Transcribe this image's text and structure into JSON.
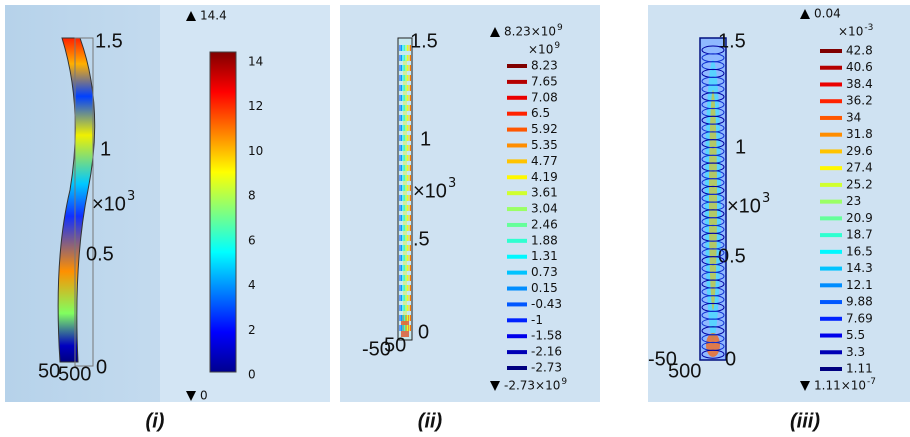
{
  "panels": [
    {
      "caption": "(i)",
      "top_label": "14.4",
      "bottom_label": "0",
      "scale_labels": [
        "14",
        "12",
        "10",
        "8",
        "6",
        "4",
        "2",
        "0"
      ],
      "axis_labels": {
        "top": "1.5",
        "mid": "1",
        "multiplier": "×10",
        "exponent": "3",
        "low": "0.5",
        "base": [
          "50",
          "500",
          "0"
        ]
      }
    },
    {
      "caption": "(ii)",
      "top_label": "8.23×10",
      "top_exponent": "9",
      "multiplier": "×10",
      "multiplier_exponent": "9",
      "bottom_label": "-2.73×10",
      "bottom_exponent": "9",
      "scale_labels": [
        "8.23",
        "7.65",
        "7.08",
        "6.5",
        "5.92",
        "5.35",
        "4.77",
        "4.19",
        "3.61",
        "3.04",
        "2.46",
        "1.88",
        "1.31",
        "0.73",
        "0.15",
        "-0.43",
        "-1",
        "-1.58",
        "-2.16",
        "-2.73"
      ],
      "axis_labels": {
        "top": "1.5",
        "mid": "1",
        "multiplier": "×10",
        "exponent": "3",
        "low": ".5",
        "base": [
          "-50",
          "50",
          "0"
        ]
      }
    },
    {
      "caption": "(iii)",
      "top_label": "0.04",
      "multiplier": "×10",
      "multiplier_exponent": "-3",
      "bottom_label": "1.11×10",
      "bottom_exponent": "-7",
      "scale_labels": [
        "42.8",
        "40.6",
        "38.4",
        "36.2",
        "34",
        "31.8",
        "29.6",
        "27.4",
        "25.2",
        "23",
        "20.9",
        "18.7",
        "16.5",
        "14.3",
        "12.1",
        "9.88",
        "7.69",
        "5.5",
        "3.3",
        "1.11"
      ],
      "axis_labels": {
        "top": "1.5",
        "mid": "1",
        "multiplier": "×10",
        "exponent": "3",
        "low": "0.5",
        "base": [
          "-50",
          "500",
          "0"
        ]
      }
    }
  ]
}
